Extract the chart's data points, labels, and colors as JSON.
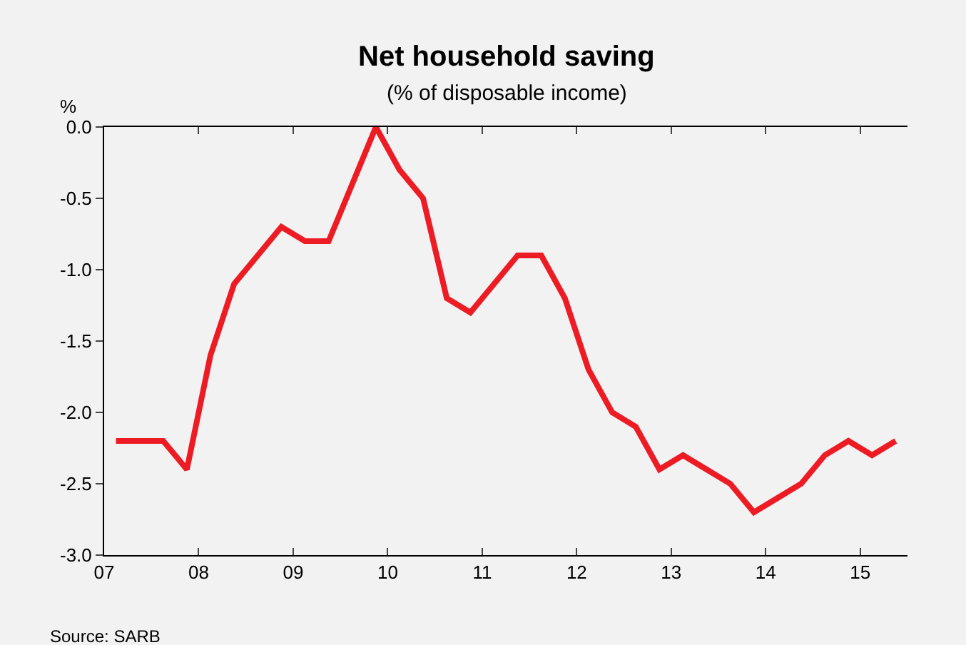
{
  "chart_data": {
    "type": "line",
    "title": "Net household saving",
    "subtitle": "(% of disposable income)",
    "ylabel": "%",
    "x": [
      2007.125,
      2007.375,
      2007.625,
      2007.875,
      2008.125,
      2008.375,
      2008.625,
      2008.875,
      2009.125,
      2009.375,
      2009.625,
      2009.875,
      2010.125,
      2010.375,
      2010.625,
      2010.875,
      2011.125,
      2011.375,
      2011.625,
      2011.875,
      2012.125,
      2012.375,
      2012.625,
      2012.875,
      2013.125,
      2013.375,
      2013.625,
      2013.875,
      2014.125,
      2014.375,
      2014.625,
      2014.875,
      2015.125,
      2015.375
    ],
    "series": [
      {
        "color": "#ed1c24",
        "values": [
          -2.2,
          -2.2,
          -2.2,
          -2.4,
          -1.6,
          -1.1,
          -0.9,
          -0.7,
          -0.8,
          -0.8,
          -0.4,
          0.0,
          -0.3,
          -0.5,
          -1.2,
          -1.3,
          -1.1,
          -0.9,
          -0.9,
          -1.2,
          -1.7,
          -2.0,
          -2.1,
          -2.4,
          -2.3,
          -2.4,
          -2.5,
          -2.7,
          -2.6,
          -2.5,
          -2.3,
          -2.2,
          -2.3,
          -2.2
        ]
      }
    ],
    "xlim": [
      2007,
      2015.5
    ],
    "xticks": [
      {
        "value": 2007,
        "label": "07"
      },
      {
        "value": 2008,
        "label": "08"
      },
      {
        "value": 2009,
        "label": "09"
      },
      {
        "value": 2010,
        "label": "10"
      },
      {
        "value": 2011,
        "label": "11"
      },
      {
        "value": 2012,
        "label": "12"
      },
      {
        "value": 2013,
        "label": "13"
      },
      {
        "value": 2014,
        "label": "14"
      },
      {
        "value": 2015,
        "label": "15"
      }
    ],
    "ylim": [
      -3.0,
      0.0
    ],
    "yticks": [
      {
        "value": -3.0,
        "label": "-3.0"
      },
      {
        "value": -2.5,
        "label": "-2.5"
      },
      {
        "value": -2.0,
        "label": "-2.0"
      },
      {
        "value": -1.5,
        "label": "-1.5"
      },
      {
        "value": -1.0,
        "label": "-1.0"
      },
      {
        "value": -0.5,
        "label": "-0.5"
      },
      {
        "value": 0.0,
        "label": "0.0"
      }
    ],
    "grid": false,
    "marker": "none",
    "line_style": "solid",
    "annotations": [
      "Source: SARB"
    ]
  }
}
